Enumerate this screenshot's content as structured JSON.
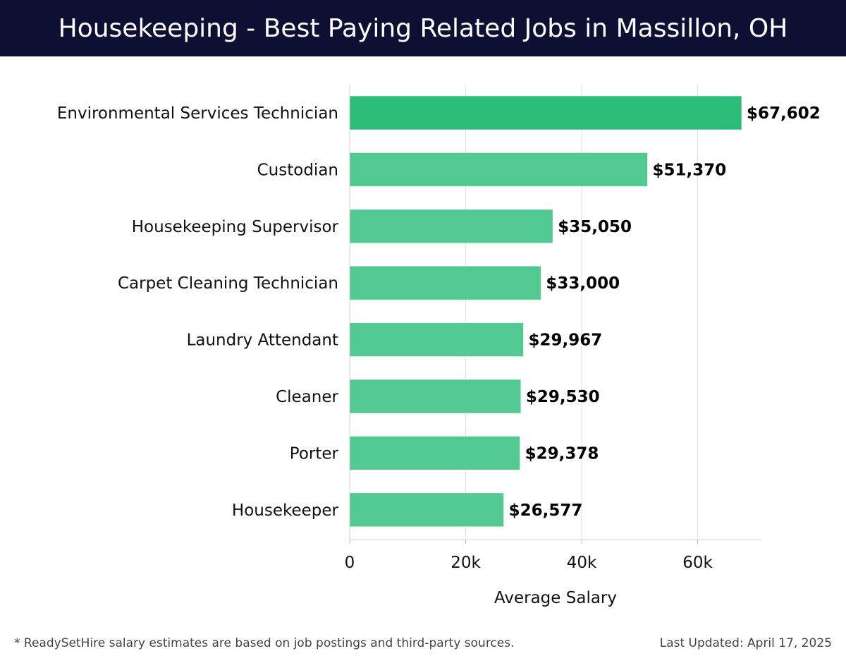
{
  "header": {
    "title": "Housekeeping - Best Paying Related Jobs in Massillon, OH"
  },
  "colors": {
    "header_bg": "#0d0f33",
    "bar_top": "#2bbd77",
    "bar": "#53c992",
    "grid": "#e2e2e2"
  },
  "chart_data": {
    "type": "bar",
    "orientation": "horizontal",
    "categories": [
      "Environmental Services Technician",
      "Custodian",
      "Housekeeping Supervisor",
      "Carpet Cleaning Technician",
      "Laundry Attendant",
      "Cleaner",
      "Porter",
      "Housekeeper"
    ],
    "values": [
      67602,
      51370,
      35050,
      33000,
      29967,
      29530,
      29378,
      26577
    ],
    "value_labels": [
      "$67,602",
      "$51,370",
      "$35,050",
      "$33,000",
      "$29,967",
      "$29,530",
      "$29,378",
      "$26,577"
    ],
    "xlabel": "Average Salary",
    "ylabel": "",
    "xlim": [
      0,
      71000
    ],
    "xticks": [
      0,
      20000,
      40000,
      60000
    ],
    "xtick_labels": [
      "0",
      "20k",
      "40k",
      "60k"
    ],
    "grid": true
  },
  "footer": {
    "note": "* ReadySetHire salary estimates are based on job postings and third-party sources.",
    "updated": "Last Updated: April 17, 2025"
  }
}
